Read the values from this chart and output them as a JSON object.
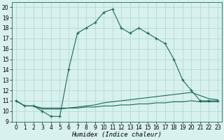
{
  "xlabel": "Humidex (Indice chaleur)",
  "x": [
    0,
    1,
    2,
    3,
    4,
    5,
    6,
    7,
    8,
    9,
    10,
    11,
    12,
    13,
    14,
    15,
    16,
    17,
    18,
    19,
    20,
    21,
    22,
    23
  ],
  "y_main": [
    11,
    10.5,
    10.5,
    10,
    9.5,
    9.5,
    14,
    17.5,
    18,
    18.5,
    19.5,
    19.8,
    18,
    17.5,
    18,
    17.5,
    17,
    16.5,
    15,
    13,
    12,
    11,
    11,
    11
  ],
  "y_line1": [
    11,
    10.5,
    10.5,
    10.2,
    10.2,
    10.2,
    10.3,
    10.4,
    10.5,
    10.6,
    10.8,
    10.9,
    11.0,
    11.1,
    11.2,
    11.3,
    11.4,
    11.5,
    11.6,
    11.7,
    11.8,
    11.5,
    11.2,
    11.1
  ],
  "y_line2": [
    11,
    10.5,
    10.5,
    10.3,
    10.3,
    10.3,
    10.3,
    10.3,
    10.4,
    10.4,
    10.5,
    10.5,
    10.6,
    10.6,
    10.7,
    10.7,
    10.8,
    10.8,
    10.9,
    10.9,
    11.0,
    10.9,
    10.9,
    10.9
  ],
  "line_color": "#1a6b5a",
  "bg_color": "#d8f0ee",
  "grid_color": "#a8d8d0",
  "xlim": [
    -0.5,
    23.5
  ],
  "ylim": [
    9,
    20.5
  ],
  "yticks": [
    9,
    10,
    11,
    12,
    13,
    14,
    15,
    16,
    17,
    18,
    19,
    20
  ],
  "xticks": [
    0,
    1,
    2,
    3,
    4,
    5,
    6,
    7,
    8,
    9,
    10,
    11,
    12,
    13,
    14,
    15,
    16,
    17,
    18,
    19,
    20,
    21,
    22,
    23
  ],
  "tick_fontsize": 5.5,
  "xlabel_fontsize": 6.5
}
